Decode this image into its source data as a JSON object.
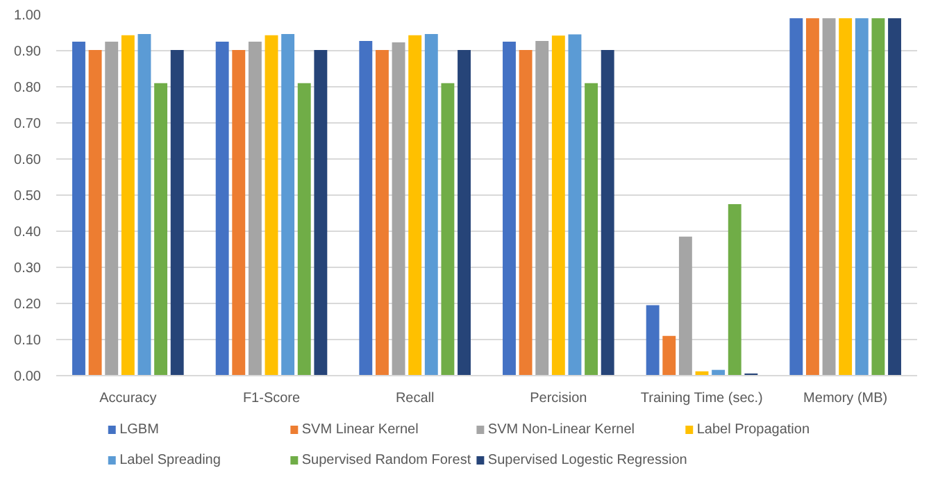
{
  "chart_data": {
    "type": "bar",
    "categories": [
      "Accuracy",
      "F1-Score",
      "Recall",
      "Percision",
      "Training Time (sec.)",
      "Memory (MB)"
    ],
    "series": [
      {
        "name": "LGBM",
        "color": "#4472c4",
        "values": [
          0.925,
          0.925,
          0.927,
          0.925,
          0.195,
          0.99
        ]
      },
      {
        "name": "SVM Linear Kernel",
        "color": "#ed7d31",
        "values": [
          0.902,
          0.902,
          0.902,
          0.902,
          0.11,
          0.99
        ]
      },
      {
        "name": "SVM Non-Linear Kernel",
        "color": "#a5a5a5",
        "values": [
          0.925,
          0.925,
          0.923,
          0.927,
          0.385,
          0.99
        ]
      },
      {
        "name": "Label Propagation",
        "color": "#ffc000",
        "values": [
          0.943,
          0.943,
          0.943,
          0.942,
          0.012,
          0.99
        ]
      },
      {
        "name": "Label Spreading",
        "color": "#5b9bd5",
        "values": [
          0.946,
          0.946,
          0.946,
          0.945,
          0.016,
          0.99
        ]
      },
      {
        "name": "Supervised Random Forest",
        "color": "#70ad47",
        "values": [
          0.81,
          0.81,
          0.81,
          0.81,
          0.475,
          0.99
        ]
      },
      {
        "name": "Supervised Logestic Regression",
        "color": "#264478",
        "values": [
          0.902,
          0.902,
          0.902,
          0.902,
          0.006,
          0.99
        ]
      }
    ],
    "ylim": [
      0,
      1
    ],
    "yticks": [
      {
        "value": 0,
        "label": "0.00"
      },
      {
        "value": 0.1,
        "label": "0.10"
      },
      {
        "value": 0.2,
        "label": "0.20"
      },
      {
        "value": 0.3,
        "label": "0.30"
      },
      {
        "value": 0.4,
        "label": "0.40"
      },
      {
        "value": 0.5,
        "label": "0.50"
      },
      {
        "value": 0.6,
        "label": "0.60"
      },
      {
        "value": 0.7,
        "label": "0.70"
      },
      {
        "value": 0.8,
        "label": "0.80"
      },
      {
        "value": 0.9,
        "label": "0.90"
      },
      {
        "value": 1,
        "label": "1.00"
      }
    ],
    "grid": "y",
    "legend": "bottom"
  }
}
